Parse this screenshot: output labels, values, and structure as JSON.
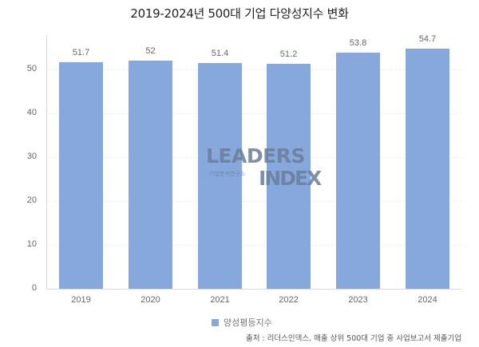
{
  "title": "2019-2024년 500대 기업 다양성지수 변화",
  "chart_data": {
    "type": "bar",
    "title": "2019-2024년 500대 기업 다양성지수 변화",
    "xlabel": "",
    "ylabel": "",
    "categories": [
      "2019",
      "2020",
      "2021",
      "2022",
      "2023",
      "2024"
    ],
    "series": [
      {
        "name": "양성평등지수",
        "values": [
          51.7,
          52,
          51.4,
          51.2,
          53.8,
          54.7
        ],
        "color": "#86a8dc"
      }
    ],
    "value_labels": [
      "51.7",
      "52",
      "51.4",
      "51.2",
      "53.8",
      "54.7"
    ],
    "ylim": [
      0,
      55
    ],
    "yticks": [
      "0",
      "10",
      "20",
      "30",
      "40",
      "50"
    ],
    "grid": true,
    "legend_position": "bottom"
  },
  "legend": {
    "label": "양성평등지수"
  },
  "source": "출처 : 리더스인덱스, 매출 상위 500대 기업 중 사업보고서 제출기업",
  "watermark": {
    "main": "LEADERS",
    "sub": "기업분석연구소",
    "index": "INDEX"
  }
}
